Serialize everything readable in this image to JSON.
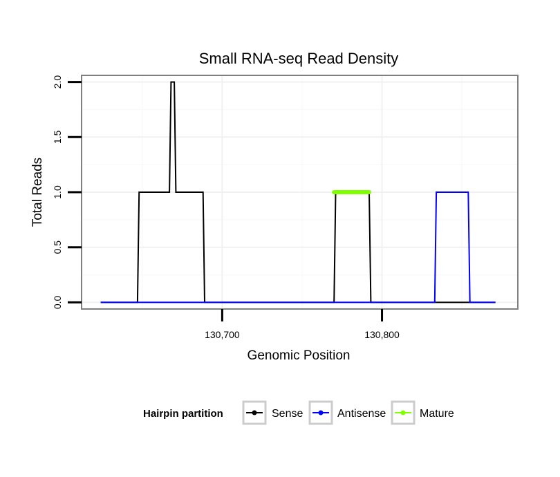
{
  "chart_data": {
    "type": "line",
    "title": "Small RNA-seq Read Density",
    "xlabel": "Genomic Position",
    "ylabel": "Total Reads",
    "xlim": [
      130612,
      130885
    ],
    "ylim": [
      -0.06,
      2.06
    ],
    "x_ticks": [
      {
        "value": 130700,
        "label": "130,700"
      },
      {
        "value": 130800,
        "label": "130,800"
      }
    ],
    "y_ticks": [
      {
        "value": 0.0,
        "label": "0.0"
      },
      {
        "value": 0.5,
        "label": "0.5"
      },
      {
        "value": 1.0,
        "label": "1.0"
      },
      {
        "value": 1.5,
        "label": "1.5"
      },
      {
        "value": 2.0,
        "label": "2.0"
      }
    ],
    "grid": true,
    "legend": {
      "title": "Hairpin partition",
      "position": "bottom",
      "entries": [
        "Sense",
        "Antisense",
        "Mature"
      ]
    },
    "series": [
      {
        "name": "Sense",
        "color": "#000000",
        "x": [
          130624,
          130647,
          130648,
          130667,
          130668,
          130670,
          130671,
          130672,
          130688,
          130689,
          130770,
          130771,
          130792,
          130793,
          130871
        ],
        "y": [
          0,
          0,
          1,
          1,
          2,
          2,
          1,
          1,
          1,
          0,
          0,
          1,
          1,
          0,
          0
        ]
      },
      {
        "name": "Antisense",
        "color": "#0000ff",
        "x": [
          130624,
          130833,
          130834,
          130854,
          130855,
          130871
        ],
        "y": [
          0,
          0,
          1,
          1,
          0,
          0
        ]
      },
      {
        "name": "Mature",
        "color": "#7fff00",
        "x": [
          130770,
          130792
        ],
        "y": [
          1,
          1
        ]
      }
    ]
  }
}
